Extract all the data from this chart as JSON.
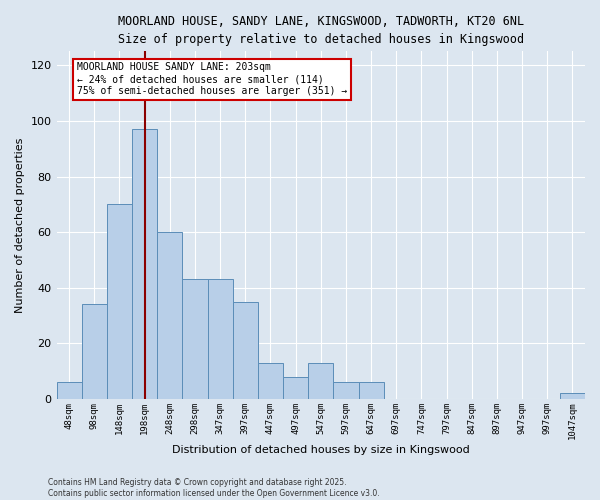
{
  "title_line1": "MOORLAND HOUSE, SANDY LANE, KINGSWOOD, TADWORTH, KT20 6NL",
  "title_line2": "Size of property relative to detached houses in Kingswood",
  "xlabel": "Distribution of detached houses by size in Kingswood",
  "ylabel": "Number of detached properties",
  "categories": [
    "48sqm",
    "98sqm",
    "148sqm",
    "198sqm",
    "248sqm",
    "298sqm",
    "347sqm",
    "397sqm",
    "447sqm",
    "497sqm",
    "547sqm",
    "597sqm",
    "647sqm",
    "697sqm",
    "747sqm",
    "797sqm",
    "847sqm",
    "897sqm",
    "947sqm",
    "997sqm",
    "1047sqm"
  ],
  "values": [
    6,
    34,
    70,
    97,
    60,
    43,
    43,
    35,
    13,
    8,
    13,
    6,
    6,
    0,
    0,
    0,
    0,
    0,
    0,
    0,
    2
  ],
  "bar_color": "#b8cfe8",
  "bar_edge_color": "#5b8db8",
  "vline_color": "#8b0000",
  "vertical_line_x": 3,
  "annotation_text_line1": "MOORLAND HOUSE SANDY LANE: 203sqm",
  "annotation_text_line2": "← 24% of detached houses are smaller (114)",
  "annotation_text_line3": "75% of semi-detached houses are larger (351) →",
  "annotation_box_color": "white",
  "annotation_box_edge": "#cc0000",
  "ylim": [
    0,
    125
  ],
  "yticks": [
    0,
    20,
    40,
    60,
    80,
    100,
    120
  ],
  "background_color": "#dce6f0",
  "grid_color": "white",
  "footer_line1": "Contains HM Land Registry data © Crown copyright and database right 2025.",
  "footer_line2": "Contains public sector information licensed under the Open Government Licence v3.0."
}
